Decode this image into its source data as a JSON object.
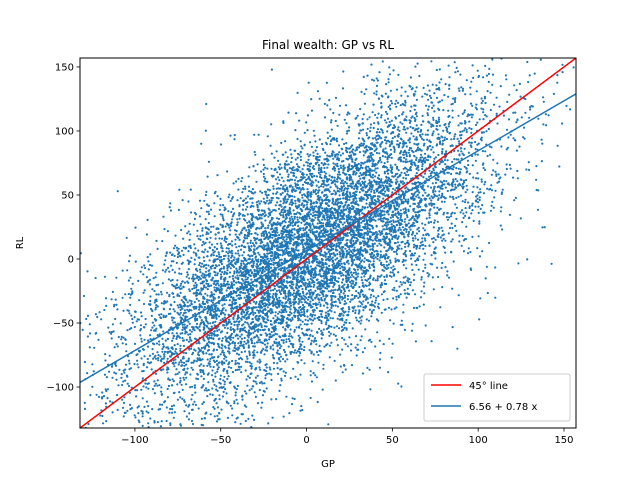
{
  "chart_data": {
    "type": "scatter",
    "title": "Final wealth: GP vs RL",
    "xlabel": "GP",
    "ylabel": "RL",
    "xlim": [
      -132,
      157
    ],
    "ylim": [
      -132,
      157
    ],
    "xticks": [
      -100,
      -50,
      0,
      50,
      100,
      150
    ],
    "yticks": [
      -100,
      -50,
      0,
      50,
      100,
      150
    ],
    "grid": false,
    "legend_position": "lower-right",
    "scatter": {
      "color": "#1f77b4",
      "point_count": 9000,
      "distribution": "bivariate, centred near (0, 5), broad spread with clipping at plot edges"
    },
    "lines": [
      {
        "name": "45° line",
        "intercept": 0,
        "slope": 1,
        "color": "#ff0000"
      },
      {
        "name": "6.56 + 0.78 x",
        "intercept": 6.56,
        "slope": 0.78,
        "color": "#1f77b4"
      }
    ]
  }
}
